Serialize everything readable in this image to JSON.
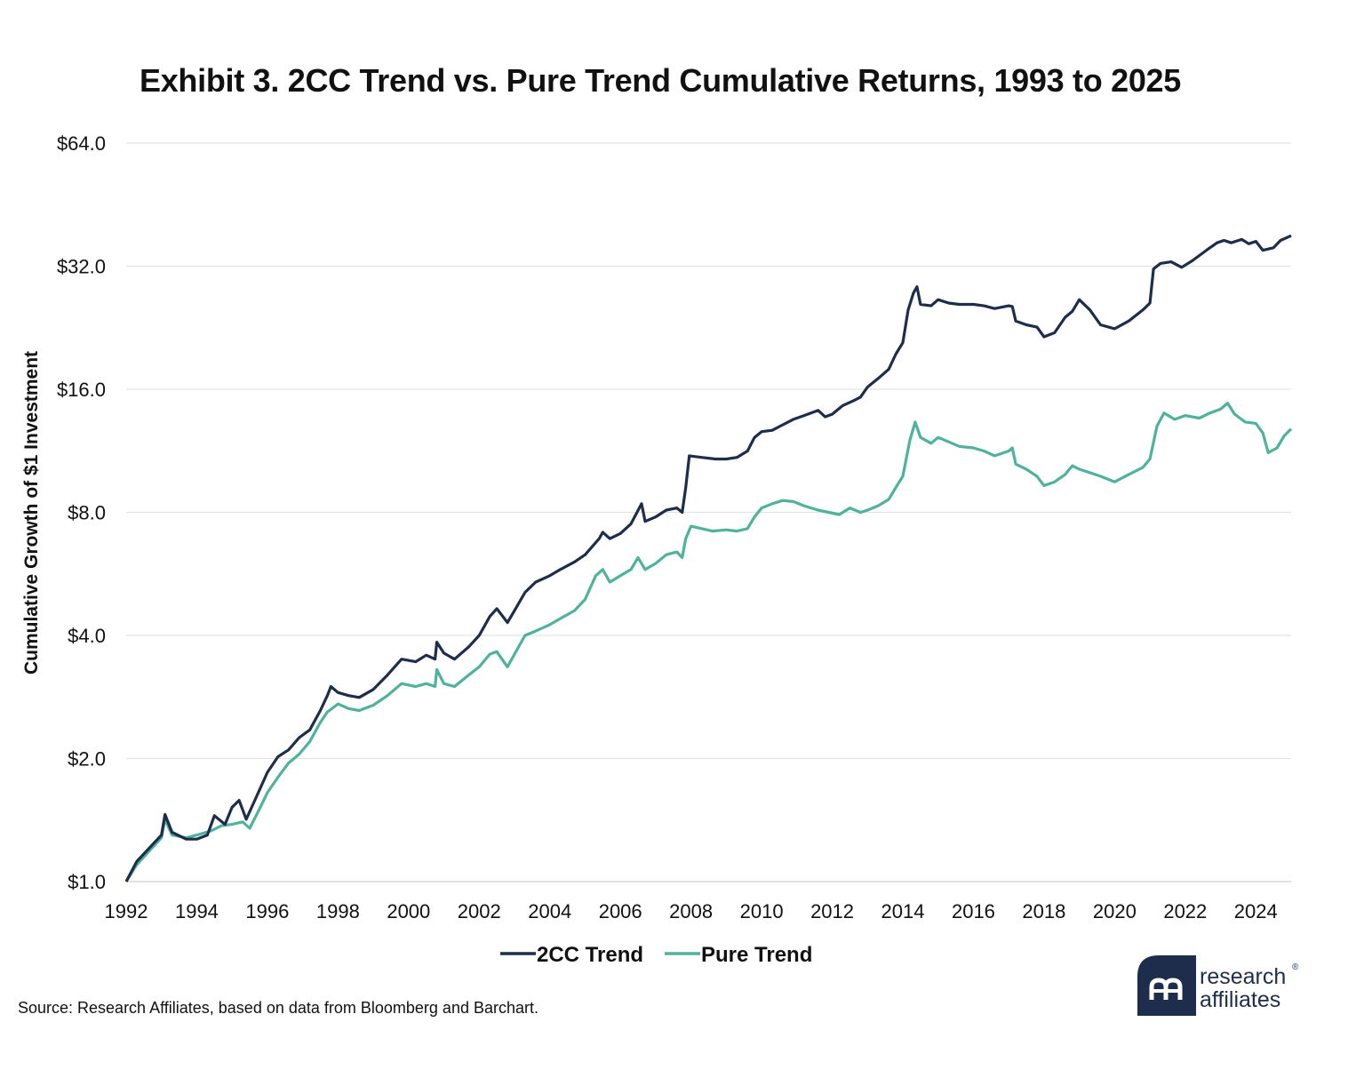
{
  "title": "Exhibit 3. 2CC Trend vs. Pure Trend Cumulative Returns, 1993 to 2025",
  "source": "Source: Research Affiliates, based on data from Bloomberg and Barchart.",
  "logo": {
    "line1": "research",
    "line2": "affiliates",
    "reg": "®"
  },
  "colors": {
    "series_2cc": "#1f2d4d",
    "series_pure": "#4fb39c",
    "grid": "#e3e3e3",
    "logo": "#1f2d4d"
  },
  "chart_data": {
    "type": "line",
    "title": "Exhibit 3. 2CC Trend vs. Pure Trend Cumulative Returns, 1993 to 2025",
    "xlabel": "",
    "ylabel": "Cumulative Growth of $1 Investment",
    "y_scale": "log2",
    "ylim": [
      1,
      64
    ],
    "xlim": [
      1992,
      2025
    ],
    "grid": true,
    "legend_position": "bottom-center",
    "y_ticks": [
      1,
      2,
      4,
      8,
      16,
      32,
      64
    ],
    "y_tick_labels": [
      "$1.0",
      "$2.0",
      "$4.0",
      "$8.0",
      "$16.0",
      "$32.0",
      "$64.0"
    ],
    "x_ticks": [
      1992,
      1994,
      1996,
      1998,
      2000,
      2002,
      2004,
      2006,
      2008,
      2010,
      2012,
      2014,
      2016,
      2018,
      2020,
      2022,
      2024
    ],
    "x_tick_labels": [
      "1992",
      "1994",
      "1996",
      "1998",
      "2000",
      "2002",
      "2004",
      "2006",
      "2008",
      "2010",
      "2012",
      "2014",
      "2016",
      "2018",
      "2020",
      "2022",
      "2024"
    ],
    "series": [
      {
        "name": "2CC Trend",
        "color": "#1f2d4d",
        "points": [
          [
            1992.0,
            1.0
          ],
          [
            1992.3,
            1.12
          ],
          [
            1992.7,
            1.22
          ],
          [
            1993.0,
            1.3
          ],
          [
            1993.1,
            1.46
          ],
          [
            1993.3,
            1.32
          ],
          [
            1993.7,
            1.27
          ],
          [
            1994.0,
            1.27
          ],
          [
            1994.3,
            1.3
          ],
          [
            1994.5,
            1.45
          ],
          [
            1994.8,
            1.38
          ],
          [
            1995.0,
            1.52
          ],
          [
            1995.2,
            1.58
          ],
          [
            1995.4,
            1.42
          ],
          [
            1995.7,
            1.62
          ],
          [
            1996.0,
            1.85
          ],
          [
            1996.3,
            2.02
          ],
          [
            1996.6,
            2.1
          ],
          [
            1996.9,
            2.25
          ],
          [
            1997.2,
            2.35
          ],
          [
            1997.5,
            2.62
          ],
          [
            1997.7,
            2.85
          ],
          [
            1997.8,
            3.0
          ],
          [
            1998.0,
            2.9
          ],
          [
            1998.3,
            2.85
          ],
          [
            1998.6,
            2.82
          ],
          [
            1999.0,
            2.95
          ],
          [
            1999.4,
            3.2
          ],
          [
            1999.8,
            3.5
          ],
          [
            2000.2,
            3.45
          ],
          [
            2000.5,
            3.58
          ],
          [
            2000.75,
            3.5
          ],
          [
            2000.8,
            3.85
          ],
          [
            2001.0,
            3.62
          ],
          [
            2001.3,
            3.5
          ],
          [
            2001.7,
            3.75
          ],
          [
            2002.0,
            4.0
          ],
          [
            2002.3,
            4.45
          ],
          [
            2002.5,
            4.65
          ],
          [
            2002.8,
            4.3
          ],
          [
            2003.0,
            4.6
          ],
          [
            2003.3,
            5.1
          ],
          [
            2003.6,
            5.4
          ],
          [
            2004.0,
            5.6
          ],
          [
            2004.3,
            5.8
          ],
          [
            2004.7,
            6.05
          ],
          [
            2005.0,
            6.3
          ],
          [
            2005.4,
            6.9
          ],
          [
            2005.5,
            7.15
          ],
          [
            2005.7,
            6.9
          ],
          [
            2006.0,
            7.1
          ],
          [
            2006.3,
            7.5
          ],
          [
            2006.6,
            8.4
          ],
          [
            2006.7,
            7.6
          ],
          [
            2007.0,
            7.8
          ],
          [
            2007.3,
            8.1
          ],
          [
            2007.6,
            8.2
          ],
          [
            2007.75,
            8.0
          ],
          [
            2007.85,
            9.2
          ],
          [
            2007.95,
            11.0
          ],
          [
            2008.3,
            10.9
          ],
          [
            2008.7,
            10.8
          ],
          [
            2009.0,
            10.8
          ],
          [
            2009.3,
            10.9
          ],
          [
            2009.6,
            11.3
          ],
          [
            2009.8,
            12.2
          ],
          [
            2010.0,
            12.6
          ],
          [
            2010.3,
            12.7
          ],
          [
            2010.6,
            13.1
          ],
          [
            2010.9,
            13.5
          ],
          [
            2011.2,
            13.8
          ],
          [
            2011.6,
            14.2
          ],
          [
            2011.8,
            13.7
          ],
          [
            2012.0,
            13.9
          ],
          [
            2012.3,
            14.6
          ],
          [
            2012.6,
            15.0
          ],
          [
            2012.8,
            15.3
          ],
          [
            2013.0,
            16.2
          ],
          [
            2013.3,
            17.0
          ],
          [
            2013.6,
            17.9
          ],
          [
            2013.8,
            19.5
          ],
          [
            2014.0,
            20.8
          ],
          [
            2014.15,
            25.0
          ],
          [
            2014.3,
            27.5
          ],
          [
            2014.4,
            28.5
          ],
          [
            2014.5,
            25.8
          ],
          [
            2014.8,
            25.6
          ],
          [
            2015.0,
            26.5
          ],
          [
            2015.3,
            26.0
          ],
          [
            2015.6,
            25.8
          ],
          [
            2016.0,
            25.8
          ],
          [
            2016.3,
            25.6
          ],
          [
            2016.6,
            25.2
          ],
          [
            2017.0,
            25.6
          ],
          [
            2017.1,
            25.5
          ],
          [
            2017.2,
            23.5
          ],
          [
            2017.5,
            23.0
          ],
          [
            2017.8,
            22.7
          ],
          [
            2018.0,
            21.5
          ],
          [
            2018.3,
            22.0
          ],
          [
            2018.6,
            24.0
          ],
          [
            2018.8,
            24.8
          ],
          [
            2019.0,
            26.5
          ],
          [
            2019.3,
            25.0
          ],
          [
            2019.6,
            23.0
          ],
          [
            2020.0,
            22.5
          ],
          [
            2020.4,
            23.5
          ],
          [
            2020.8,
            25.0
          ],
          [
            2021.0,
            26.0
          ],
          [
            2021.1,
            31.5
          ],
          [
            2021.3,
            32.5
          ],
          [
            2021.6,
            32.8
          ],
          [
            2021.9,
            31.8
          ],
          [
            2022.2,
            33.0
          ],
          [
            2022.6,
            35.0
          ],
          [
            2022.9,
            36.5
          ],
          [
            2023.1,
            37.0
          ],
          [
            2023.3,
            36.5
          ],
          [
            2023.6,
            37.2
          ],
          [
            2023.8,
            36.3
          ],
          [
            2024.0,
            36.8
          ],
          [
            2024.2,
            35.0
          ],
          [
            2024.5,
            35.5
          ],
          [
            2024.7,
            37.0
          ],
          [
            2025.0,
            38.0
          ]
        ]
      },
      {
        "name": "Pure Trend",
        "color": "#4fb39c",
        "points": [
          [
            1992.0,
            1.0
          ],
          [
            1992.3,
            1.1
          ],
          [
            1992.7,
            1.2
          ],
          [
            1993.0,
            1.28
          ],
          [
            1993.1,
            1.42
          ],
          [
            1993.3,
            1.3
          ],
          [
            1993.7,
            1.28
          ],
          [
            1994.0,
            1.3
          ],
          [
            1994.4,
            1.33
          ],
          [
            1994.7,
            1.37
          ],
          [
            1995.0,
            1.38
          ],
          [
            1995.3,
            1.4
          ],
          [
            1995.5,
            1.35
          ],
          [
            1995.8,
            1.52
          ],
          [
            1996.0,
            1.65
          ],
          [
            1996.3,
            1.8
          ],
          [
            1996.6,
            1.95
          ],
          [
            1996.9,
            2.05
          ],
          [
            1997.2,
            2.2
          ],
          [
            1997.5,
            2.45
          ],
          [
            1997.7,
            2.6
          ],
          [
            1998.0,
            2.72
          ],
          [
            1998.3,
            2.65
          ],
          [
            1998.6,
            2.62
          ],
          [
            1999.0,
            2.7
          ],
          [
            1999.4,
            2.85
          ],
          [
            1999.8,
            3.05
          ],
          [
            2000.2,
            3.0
          ],
          [
            2000.5,
            3.05
          ],
          [
            2000.75,
            3.0
          ],
          [
            2000.8,
            3.3
          ],
          [
            2001.0,
            3.05
          ],
          [
            2001.3,
            3.0
          ],
          [
            2001.7,
            3.2
          ],
          [
            2002.0,
            3.35
          ],
          [
            2002.3,
            3.6
          ],
          [
            2002.5,
            3.65
          ],
          [
            2002.8,
            3.35
          ],
          [
            2003.0,
            3.6
          ],
          [
            2003.3,
            4.0
          ],
          [
            2003.6,
            4.1
          ],
          [
            2004.0,
            4.25
          ],
          [
            2004.3,
            4.4
          ],
          [
            2004.7,
            4.6
          ],
          [
            2005.0,
            4.9
          ],
          [
            2005.3,
            5.6
          ],
          [
            2005.5,
            5.8
          ],
          [
            2005.7,
            5.4
          ],
          [
            2006.0,
            5.6
          ],
          [
            2006.3,
            5.8
          ],
          [
            2006.5,
            6.2
          ],
          [
            2006.7,
            5.8
          ],
          [
            2007.0,
            6.0
          ],
          [
            2007.3,
            6.3
          ],
          [
            2007.6,
            6.4
          ],
          [
            2007.75,
            6.2
          ],
          [
            2007.85,
            6.9
          ],
          [
            2008.0,
            7.4
          ],
          [
            2008.3,
            7.3
          ],
          [
            2008.6,
            7.2
          ],
          [
            2009.0,
            7.25
          ],
          [
            2009.3,
            7.2
          ],
          [
            2009.6,
            7.3
          ],
          [
            2009.8,
            7.8
          ],
          [
            2010.0,
            8.2
          ],
          [
            2010.3,
            8.4
          ],
          [
            2010.6,
            8.55
          ],
          [
            2010.9,
            8.5
          ],
          [
            2011.2,
            8.3
          ],
          [
            2011.6,
            8.1
          ],
          [
            2011.9,
            8.0
          ],
          [
            2012.2,
            7.9
          ],
          [
            2012.5,
            8.2
          ],
          [
            2012.8,
            8.0
          ],
          [
            2013.0,
            8.1
          ],
          [
            2013.3,
            8.3
          ],
          [
            2013.6,
            8.6
          ],
          [
            2013.8,
            9.2
          ],
          [
            2014.0,
            9.8
          ],
          [
            2014.2,
            12.0
          ],
          [
            2014.35,
            13.3
          ],
          [
            2014.5,
            12.2
          ],
          [
            2014.8,
            11.8
          ],
          [
            2015.0,
            12.2
          ],
          [
            2015.3,
            11.9
          ],
          [
            2015.6,
            11.6
          ],
          [
            2016.0,
            11.5
          ],
          [
            2016.3,
            11.3
          ],
          [
            2016.6,
            11.0
          ],
          [
            2017.0,
            11.3
          ],
          [
            2017.1,
            11.5
          ],
          [
            2017.2,
            10.5
          ],
          [
            2017.5,
            10.2
          ],
          [
            2017.8,
            9.8
          ],
          [
            2018.0,
            9.3
          ],
          [
            2018.3,
            9.5
          ],
          [
            2018.6,
            9.9
          ],
          [
            2018.8,
            10.4
          ],
          [
            2019.0,
            10.2
          ],
          [
            2019.3,
            10.0
          ],
          [
            2019.6,
            9.8
          ],
          [
            2020.0,
            9.5
          ],
          [
            2020.4,
            9.9
          ],
          [
            2020.8,
            10.3
          ],
          [
            2021.0,
            10.8
          ],
          [
            2021.2,
            13.0
          ],
          [
            2021.4,
            14.0
          ],
          [
            2021.7,
            13.5
          ],
          [
            2022.0,
            13.8
          ],
          [
            2022.4,
            13.6
          ],
          [
            2022.7,
            14.0
          ],
          [
            2023.0,
            14.3
          ],
          [
            2023.2,
            14.8
          ],
          [
            2023.4,
            13.9
          ],
          [
            2023.7,
            13.3
          ],
          [
            2024.0,
            13.2
          ],
          [
            2024.2,
            12.5
          ],
          [
            2024.35,
            11.2
          ],
          [
            2024.6,
            11.5
          ],
          [
            2024.8,
            12.3
          ],
          [
            2025.0,
            12.8
          ]
        ]
      }
    ]
  }
}
